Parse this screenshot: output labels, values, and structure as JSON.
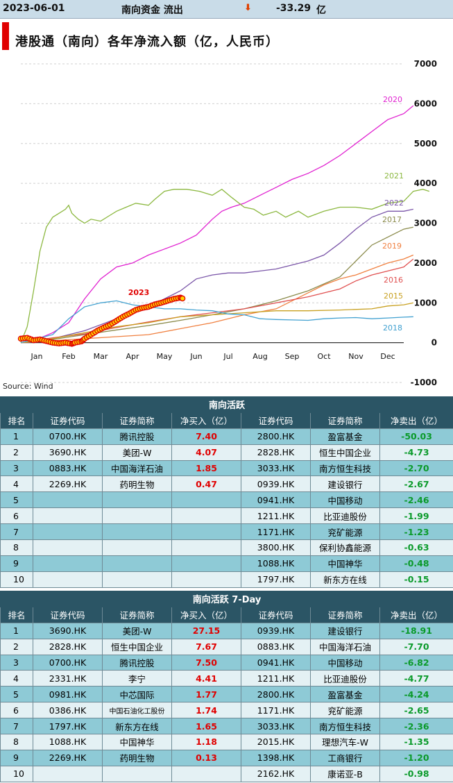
{
  "header": {
    "date": "2023-06-01",
    "label": "南向资金 流出",
    "value": "-33.29",
    "unit": "亿"
  },
  "source": "Source: Wind",
  "chart_data": {
    "type": "line",
    "title": "港股通（南向）各年净流入额（亿，人民币）",
    "x_ticks": [
      "Jan",
      "Feb",
      "Mar",
      "Apr",
      "May",
      "Jun",
      "Jul",
      "Aug",
      "Sep",
      "Oct",
      "Nov",
      "Dec"
    ],
    "y_ticks": [
      7000,
      6000,
      5000,
      4000,
      3000,
      2000,
      1000,
      0,
      -1000
    ],
    "ylim": [
      -1000,
      7000
    ],
    "x_unit": "month",
    "series": [
      {
        "name": "2020",
        "color": "#e020d0",
        "points": [
          [
            0,
            0
          ],
          [
            0.5,
            80
          ],
          [
            1,
            250
          ],
          [
            1.5,
            500
          ],
          [
            2,
            1100
          ],
          [
            2.5,
            1600
          ],
          [
            3,
            1900
          ],
          [
            3.5,
            2000
          ],
          [
            4,
            2200
          ],
          [
            4.5,
            2350
          ],
          [
            5,
            2500
          ],
          [
            5.5,
            2700
          ],
          [
            6,
            3100
          ],
          [
            6.3,
            3300
          ],
          [
            6.6,
            3400
          ],
          [
            7,
            3500
          ],
          [
            7.5,
            3700
          ],
          [
            8,
            3900
          ],
          [
            8.5,
            4100
          ],
          [
            9,
            4250
          ],
          [
            9.5,
            4450
          ],
          [
            10,
            4700
          ],
          [
            10.5,
            5000
          ],
          [
            11,
            5300
          ],
          [
            11.5,
            5600
          ],
          [
            12,
            5750
          ],
          [
            12.3,
            5950
          ]
        ]
      },
      {
        "name": "2021",
        "color": "#8cb840",
        "points": [
          [
            0,
            0
          ],
          [
            0.2,
            400
          ],
          [
            0.4,
            1300
          ],
          [
            0.6,
            2300
          ],
          [
            0.8,
            2900
          ],
          [
            1,
            3150
          ],
          [
            1.2,
            3250
          ],
          [
            1.4,
            3350
          ],
          [
            1.5,
            3450
          ],
          [
            1.6,
            3250
          ],
          [
            1.8,
            3100
          ],
          [
            2,
            3000
          ],
          [
            2.2,
            3100
          ],
          [
            2.5,
            3050
          ],
          [
            2.8,
            3200
          ],
          [
            3,
            3300
          ],
          [
            3.3,
            3400
          ],
          [
            3.6,
            3500
          ],
          [
            4,
            3450
          ],
          [
            4.2,
            3600
          ],
          [
            4.5,
            3800
          ],
          [
            4.8,
            3850
          ],
          [
            5.2,
            3850
          ],
          [
            5.6,
            3800
          ],
          [
            6,
            3700
          ],
          [
            6.3,
            3850
          ],
          [
            6.6,
            3650
          ],
          [
            7,
            3400
          ],
          [
            7.3,
            3350
          ],
          [
            7.6,
            3200
          ],
          [
            8,
            3300
          ],
          [
            8.3,
            3150
          ],
          [
            8.7,
            3300
          ],
          [
            9,
            3150
          ],
          [
            9.5,
            3300
          ],
          [
            10,
            3400
          ],
          [
            10.5,
            3400
          ],
          [
            11,
            3350
          ],
          [
            11.5,
            3500
          ],
          [
            12,
            3550
          ],
          [
            12.3,
            3800
          ],
          [
            12.6,
            3850
          ],
          [
            12.8,
            3800
          ]
        ]
      },
      {
        "name": "2022",
        "color": "#7a55a8",
        "points": [
          [
            0,
            0
          ],
          [
            1,
            100
          ],
          [
            2,
            300
          ],
          [
            3,
            600
          ],
          [
            4,
            900
          ],
          [
            5,
            1300
          ],
          [
            5.5,
            1600
          ],
          [
            6,
            1700
          ],
          [
            6.5,
            1750
          ],
          [
            7,
            1750
          ],
          [
            7.5,
            1800
          ],
          [
            8,
            1850
          ],
          [
            8.5,
            1950
          ],
          [
            9,
            2050
          ],
          [
            9.5,
            2200
          ],
          [
            10,
            2500
          ],
          [
            10.5,
            2850
          ],
          [
            11,
            3150
          ],
          [
            11.5,
            3300
          ],
          [
            12,
            3300
          ],
          [
            12.3,
            3350
          ]
        ]
      },
      {
        "name": "2017",
        "color": "#8a8a4a",
        "points": [
          [
            0,
            0
          ],
          [
            1,
            80
          ],
          [
            2,
            200
          ],
          [
            3,
            320
          ],
          [
            4,
            430
          ],
          [
            5,
            560
          ],
          [
            6,
            700
          ],
          [
            7,
            850
          ],
          [
            8,
            1050
          ],
          [
            9,
            1300
          ],
          [
            10,
            1650
          ],
          [
            10.5,
            2050
          ],
          [
            11,
            2450
          ],
          [
            11.5,
            2650
          ],
          [
            12,
            2850
          ],
          [
            12.3,
            2900
          ]
        ]
      },
      {
        "name": "2019",
        "color": "#f08040",
        "points": [
          [
            0,
            0
          ],
          [
            1,
            50
          ],
          [
            2,
            100
          ],
          [
            3,
            150
          ],
          [
            4,
            200
          ],
          [
            5,
            350
          ],
          [
            6,
            500
          ],
          [
            7,
            700
          ],
          [
            8,
            850
          ],
          [
            8.5,
            1050
          ],
          [
            9,
            1250
          ],
          [
            9.5,
            1450
          ],
          [
            10,
            1600
          ],
          [
            10.5,
            1700
          ],
          [
            11,
            1850
          ],
          [
            11.5,
            2000
          ],
          [
            12,
            2100
          ],
          [
            12.3,
            2200
          ]
        ]
      },
      {
        "name": "2016",
        "color": "#e05050",
        "points": [
          [
            0,
            0
          ],
          [
            1,
            120
          ],
          [
            2,
            220
          ],
          [
            3,
            380
          ],
          [
            4,
            520
          ],
          [
            5,
            650
          ],
          [
            6,
            750
          ],
          [
            7,
            850
          ],
          [
            8,
            1000
          ],
          [
            9,
            1150
          ],
          [
            10,
            1350
          ],
          [
            10.5,
            1550
          ],
          [
            11,
            1700
          ],
          [
            11.5,
            1800
          ],
          [
            12,
            1900
          ],
          [
            12.3,
            2100
          ]
        ]
      },
      {
        "name": "2015",
        "color": "#c8a020",
        "points": [
          [
            0,
            0
          ],
          [
            1,
            100
          ],
          [
            2,
            250
          ],
          [
            3,
            400
          ],
          [
            4,
            500
          ],
          [
            5,
            650
          ],
          [
            6,
            700
          ],
          [
            7,
            750
          ],
          [
            8,
            800
          ],
          [
            9,
            800
          ],
          [
            10,
            820
          ],
          [
            11,
            850
          ],
          [
            11.5,
            920
          ],
          [
            12,
            950
          ],
          [
            12.3,
            1000
          ]
        ]
      },
      {
        "name": "2018",
        "color": "#40a0d0",
        "points": [
          [
            0,
            0
          ],
          [
            1,
            200
          ],
          [
            1.5,
            600
          ],
          [
            2,
            900
          ],
          [
            2.5,
            1000
          ],
          [
            3,
            1050
          ],
          [
            3.5,
            950
          ],
          [
            4,
            900
          ],
          [
            4.5,
            850
          ],
          [
            5,
            850
          ],
          [
            5.5,
            820
          ],
          [
            6,
            800
          ],
          [
            6.5,
            720
          ],
          [
            7,
            700
          ],
          [
            7.5,
            600
          ],
          [
            8,
            580
          ],
          [
            8.5,
            570
          ],
          [
            9,
            560
          ],
          [
            9.5,
            600
          ],
          [
            10,
            620
          ],
          [
            10.5,
            630
          ],
          [
            11,
            600
          ],
          [
            11.5,
            620
          ],
          [
            12,
            640
          ],
          [
            12.3,
            650
          ]
        ]
      },
      {
        "name": "2023",
        "color": "#e00000",
        "marker": true,
        "points": [
          [
            0,
            100
          ],
          [
            0.2,
            120
          ],
          [
            0.4,
            60
          ],
          [
            0.6,
            80
          ],
          [
            0.8,
            40
          ],
          [
            1,
            0
          ],
          [
            1.2,
            -20
          ],
          [
            1.4,
            0
          ],
          [
            1.6,
            -30
          ],
          [
            1.7,
            0
          ],
          [
            1.9,
            30
          ],
          [
            2,
            100
          ],
          [
            2.2,
            200
          ],
          [
            2.4,
            300
          ],
          [
            2.6,
            380
          ],
          [
            2.8,
            450
          ],
          [
            3,
            550
          ],
          [
            3.2,
            650
          ],
          [
            3.4,
            730
          ],
          [
            3.6,
            820
          ],
          [
            3.8,
            870
          ],
          [
            4,
            900
          ],
          [
            4.2,
            960
          ],
          [
            4.4,
            1000
          ],
          [
            4.6,
            1050
          ],
          [
            4.8,
            1100
          ],
          [
            5,
            1130
          ],
          [
            5.1,
            1100
          ]
        ]
      }
    ]
  },
  "table1": {
    "title": "南向活跃",
    "headers": [
      "排名",
      "证券代码",
      "证券简称",
      "净买入（亿）",
      "证券代码",
      "证券简称",
      "净卖出（亿）"
    ],
    "rows": [
      [
        "1",
        "0700.HK",
        "腾讯控股",
        "7.40",
        "2800.HK",
        "盈富基金",
        "-50.03"
      ],
      [
        "2",
        "3690.HK",
        "美团-W",
        "4.07",
        "2828.HK",
        "恒生中国企业",
        "-4.73"
      ],
      [
        "3",
        "0883.HK",
        "中国海洋石油",
        "1.85",
        "3033.HK",
        "南方恒生科技",
        "-2.70"
      ],
      [
        "4",
        "2269.HK",
        "药明生物",
        "0.47",
        "0939.HK",
        "建设银行",
        "-2.67"
      ],
      [
        "5",
        "",
        "",
        "",
        "0941.HK",
        "中国移动",
        "-2.46"
      ],
      [
        "6",
        "",
        "",
        "",
        "1211.HK",
        "比亚迪股份",
        "-1.99"
      ],
      [
        "7",
        "",
        "",
        "",
        "1171.HK",
        "兖矿能源",
        "-1.23"
      ],
      [
        "8",
        "",
        "",
        "",
        "3800.HK",
        "保利协鑫能源",
        "-0.63"
      ],
      [
        "9",
        "",
        "",
        "",
        "1088.HK",
        "中国神华",
        "-0.48"
      ],
      [
        "10",
        "",
        "",
        "",
        "1797.HK",
        "新东方在线",
        "-0.15"
      ]
    ]
  },
  "table2": {
    "title": "南向活跃 7-Day",
    "headers": [
      "排名",
      "证券代码",
      "证券简称",
      "净买入（亿）",
      "证券代码",
      "证券简称",
      "净卖出（亿）"
    ],
    "rows": [
      [
        "1",
        "3690.HK",
        "美团-W",
        "27.15",
        "0939.HK",
        "建设银行",
        "-18.91"
      ],
      [
        "2",
        "2828.HK",
        "恒生中国企业",
        "7.67",
        "0883.HK",
        "中国海洋石油",
        "-7.70"
      ],
      [
        "3",
        "0700.HK",
        "腾讯控股",
        "7.50",
        "0941.HK",
        "中国移动",
        "-6.82"
      ],
      [
        "4",
        "2331.HK",
        "李宁",
        "4.41",
        "1211.HK",
        "比亚迪股份",
        "-4.77"
      ],
      [
        "5",
        "0981.HK",
        "中芯国际",
        "1.77",
        "2800.HK",
        "盈富基金",
        "-4.24"
      ],
      [
        "6",
        "0386.HK",
        "中国石油化工股份",
        "1.74",
        "1171.HK",
        "兖矿能源",
        "-2.65"
      ],
      [
        "7",
        "1797.HK",
        "新东方在线",
        "1.65",
        "3033.HK",
        "南方恒生科技",
        "-2.36"
      ],
      [
        "8",
        "1088.HK",
        "中国神华",
        "1.18",
        "2015.HK",
        "理想汽车-W",
        "-1.35"
      ],
      [
        "9",
        "2269.HK",
        "药明生物",
        "0.13",
        "1398.HK",
        "工商银行",
        "-1.20"
      ],
      [
        "10",
        "",
        "",
        "",
        "2162.HK",
        "康诺亚-B",
        "-0.98"
      ]
    ]
  }
}
